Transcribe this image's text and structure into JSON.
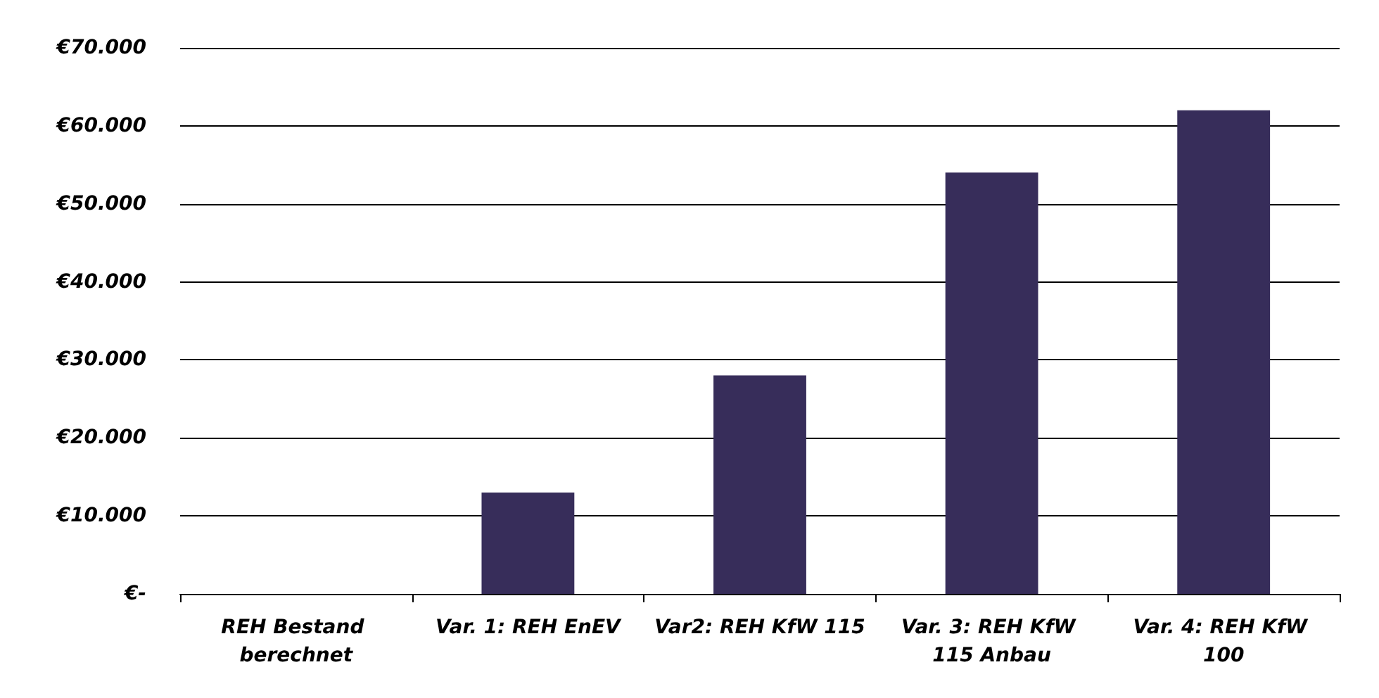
{
  "chart_data": {
    "type": "bar",
    "categories": [
      "REH Bestand berechnet",
      "Var. 1: REH EnEV",
      "Var2: REH KfW 115",
      "Var. 3: REH KfW 115 Anbau",
      "Var. 4: REH KfW 100"
    ],
    "values": [
      0,
      13000,
      28000,
      54000,
      62000
    ],
    "color": "#372d5a",
    "ylim": [
      0,
      70000
    ],
    "yticks": [
      {
        "value": 0,
        "label": "€-"
      },
      {
        "value": 10000,
        "label": "€10.000"
      },
      {
        "value": 20000,
        "label": "€20.000"
      },
      {
        "value": 30000,
        "label": "€30.000"
      },
      {
        "value": 40000,
        "label": "€40.000"
      },
      {
        "value": 50000,
        "label": "€50.000"
      },
      {
        "value": 60000,
        "label": "€60.000"
      },
      {
        "value": 70000,
        "label": "€70.000"
      }
    ],
    "grid": "y"
  }
}
